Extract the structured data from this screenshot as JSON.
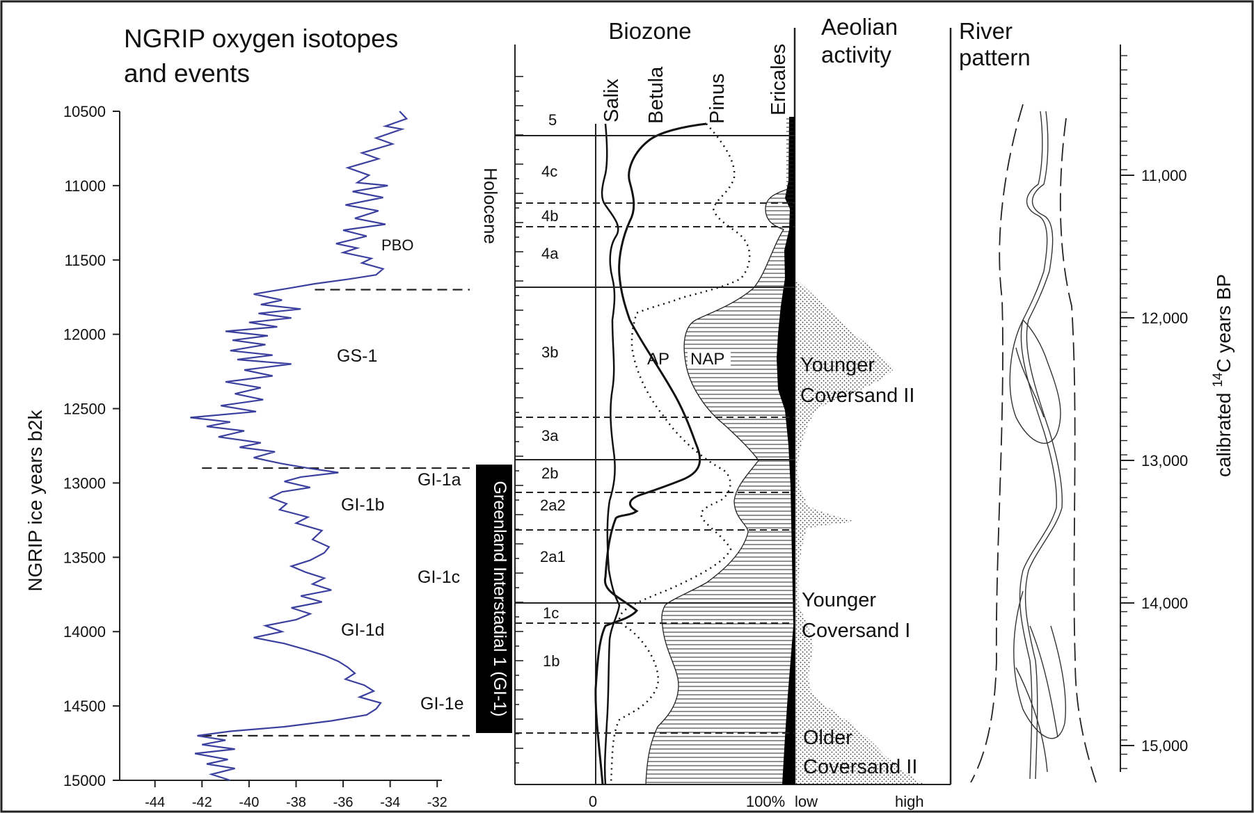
{
  "chart_data": [
    {
      "type": "line",
      "title": "NGRIP oxygen isotopes and events",
      "ylabel": "NGRIP ice years b2k",
      "xlabel": "",
      "xlim": [
        -45.5,
        -31.8
      ],
      "ylim": [
        15000,
        10500
      ],
      "x_ticks": [
        -44,
        -42,
        -40,
        -38,
        -36,
        -34,
        -32
      ],
      "y_ticks": [
        10500,
        11000,
        11500,
        12000,
        12500,
        13000,
        13500,
        14000,
        14500,
        15000
      ],
      "line_color": "#3b3f9e",
      "series": [
        {
          "name": "",
          "points": [
            [
              -33.6,
              10500
            ],
            [
              -33.3,
              10550
            ],
            [
              -34.2,
              10600
            ],
            [
              -33.5,
              10620
            ],
            [
              -34.6,
              10680
            ],
            [
              -33.9,
              10720
            ],
            [
              -35.2,
              10780
            ],
            [
              -34.5,
              10820
            ],
            [
              -35.8,
              10880
            ],
            [
              -34.9,
              10930
            ],
            [
              -35.4,
              10980
            ],
            [
              -34.1,
              11000
            ],
            [
              -35.6,
              11040
            ],
            [
              -34.3,
              11080
            ],
            [
              -35.9,
              11130
            ],
            [
              -34.5,
              11170
            ],
            [
              -35.5,
              11220
            ],
            [
              -34.2,
              11260
            ],
            [
              -36.0,
              11300
            ],
            [
              -35.0,
              11340
            ],
            [
              -36.3,
              11390
            ],
            [
              -35.4,
              11420
            ],
            [
              -36.0,
              11450
            ],
            [
              -34.8,
              11490
            ],
            [
              -35.2,
              11520
            ],
            [
              -34.3,
              11560
            ],
            [
              -34.6,
              11600
            ],
            [
              -35.8,
              11630
            ],
            [
              -37.2,
              11660
            ],
            [
              -38.3,
              11690
            ],
            [
              -39.8,
              11730
            ],
            [
              -38.6,
              11770
            ],
            [
              -39.5,
              11800
            ],
            [
              -37.8,
              11830
            ],
            [
              -39.6,
              11860
            ],
            [
              -38.2,
              11890
            ],
            [
              -40.0,
              11920
            ],
            [
              -38.8,
              11950
            ],
            [
              -41.0,
              11980
            ],
            [
              -39.2,
              12010
            ],
            [
              -40.7,
              12040
            ],
            [
              -39.3,
              12070
            ],
            [
              -40.8,
              12110
            ],
            [
              -39.0,
              12140
            ],
            [
              -40.5,
              12170
            ],
            [
              -38.2,
              12200
            ],
            [
              -40.2,
              12240
            ],
            [
              -39.0,
              12280
            ],
            [
              -41.0,
              12320
            ],
            [
              -39.5,
              12360
            ],
            [
              -40.6,
              12400
            ],
            [
              -39.4,
              12440
            ],
            [
              -41.2,
              12480
            ],
            [
              -39.7,
              12520
            ],
            [
              -42.5,
              12560
            ],
            [
              -40.8,
              12590
            ],
            [
              -41.8,
              12620
            ],
            [
              -40.2,
              12650
            ],
            [
              -41.3,
              12690
            ],
            [
              -39.5,
              12730
            ],
            [
              -40.4,
              12760
            ],
            [
              -38.9,
              12790
            ],
            [
              -39.8,
              12830
            ],
            [
              -38.6,
              12870
            ],
            [
              -37.5,
              12900
            ],
            [
              -36.2,
              12930
            ],
            [
              -37.8,
              12960
            ],
            [
              -38.5,
              12990
            ],
            [
              -37.4,
              13030
            ],
            [
              -38.6,
              13060
            ],
            [
              -39.1,
              13100
            ],
            [
              -38.4,
              13140
            ],
            [
              -38.7,
              13180
            ],
            [
              -37.5,
              13230
            ],
            [
              -38.0,
              13270
            ],
            [
              -36.9,
              13320
            ],
            [
              -37.3,
              13380
            ],
            [
              -36.6,
              13430
            ],
            [
              -36.8,
              13470
            ],
            [
              -37.4,
              13520
            ],
            [
              -38.2,
              13560
            ],
            [
              -37.6,
              13600
            ],
            [
              -36.8,
              13640
            ],
            [
              -37.3,
              13680
            ],
            [
              -36.5,
              13720
            ],
            [
              -37.8,
              13760
            ],
            [
              -36.9,
              13800
            ],
            [
              -38.2,
              13840
            ],
            [
              -37.4,
              13880
            ],
            [
              -38.0,
              13920
            ],
            [
              -39.3,
              13960
            ],
            [
              -38.6,
              14000
            ],
            [
              -39.8,
              14040
            ],
            [
              -38.5,
              14080
            ],
            [
              -37.6,
              14120
            ],
            [
              -36.8,
              14160
            ],
            [
              -36.2,
              14200
            ],
            [
              -35.8,
              14240
            ],
            [
              -35.5,
              14280
            ],
            [
              -35.9,
              14320
            ],
            [
              -35.1,
              14360
            ],
            [
              -34.7,
              14400
            ],
            [
              -35.3,
              14440
            ],
            [
              -34.4,
              14480
            ],
            [
              -34.6,
              14520
            ],
            [
              -35.0,
              14560
            ],
            [
              -36.5,
              14600
            ],
            [
              -38.5,
              14640
            ],
            [
              -40.8,
              14670
            ],
            [
              -42.2,
              14700
            ],
            [
              -41.0,
              14730
            ],
            [
              -42.0,
              14760
            ],
            [
              -40.6,
              14790
            ],
            [
              -42.3,
              14820
            ],
            [
              -40.9,
              14860
            ],
            [
              -41.8,
              14890
            ],
            [
              -40.6,
              14920
            ],
            [
              -41.6,
              14960
            ],
            [
              -40.8,
              15000
            ]
          ]
        }
      ],
      "boundaries": [
        11700,
        12900,
        14700
      ],
      "annotations": [
        "PBO",
        "GS-1",
        "GI-1a",
        "GI-1b",
        "GI-1c",
        "GI-1d",
        "GI-1e"
      ],
      "vertical_label": "Greenland Interstadial 1 (GI-1)"
    },
    {
      "type": "area",
      "title": "Biozone",
      "x_ticks": [
        "0",
        "100%"
      ],
      "period_label": "Holocene",
      "biozones": [
        "5",
        "4c",
        "4b",
        "4a",
        "3b",
        "3a",
        "2b",
        "2a2",
        "2a1",
        "1c",
        "1b"
      ],
      "series_names": [
        "Salix",
        "Betula",
        "Pinus",
        "Ericales"
      ],
      "area_labels": [
        "AP",
        "NAP"
      ]
    },
    {
      "type": "area",
      "title": "Aeolian activity",
      "x_ticks": [
        "low",
        "high"
      ],
      "events": [
        "Younger Coversand II",
        "Younger Coversand I",
        "Older Coversand II"
      ]
    },
    {
      "type": "diagram",
      "title": "River pattern"
    },
    {
      "type": "axis",
      "ylabel": "calibrated 14C years BP",
      "y_ticks": [
        "11,000",
        "12,000",
        "13,000",
        "14,000",
        "15,000"
      ]
    }
  ]
}
